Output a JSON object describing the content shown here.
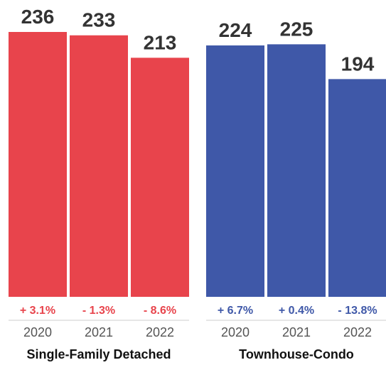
{
  "chart_data": {
    "type": "bar",
    "groups": [
      {
        "name": "Single-Family Detached",
        "color": "#e8444c",
        "categories": [
          "2020",
          "2021",
          "2022"
        ],
        "values": [
          236,
          233,
          213
        ],
        "changes": [
          "+ 3.1%",
          "- 1.3%",
          "- 8.6%"
        ]
      },
      {
        "name": "Townhouse-Condo",
        "color": "#3f58a8",
        "categories": [
          "2020",
          "2021",
          "2022"
        ],
        "values": [
          224,
          225,
          194
        ],
        "changes": [
          "+ 6.7%",
          "+ 0.4%",
          "- 13.8%"
        ]
      }
    ],
    "ylim": [
      0,
      236
    ],
    "grid": false,
    "legend": "none"
  }
}
